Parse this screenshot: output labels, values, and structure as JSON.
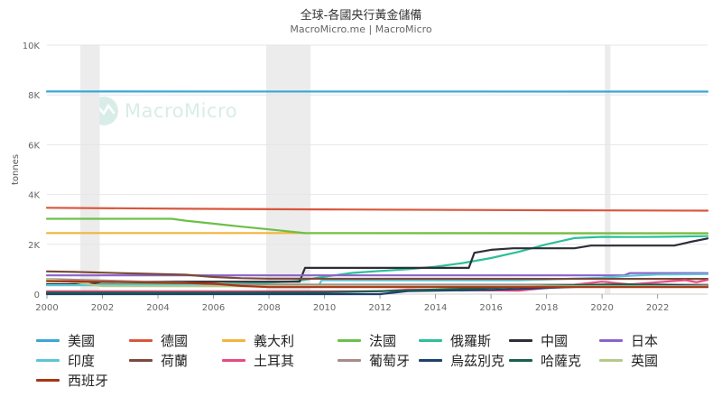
{
  "title": "全球-各國央行黃金儲備",
  "subtitle": "MacroMicro.me | MacroMicro",
  "watermark": "MacroMicro",
  "chart_data": {
    "type": "line",
    "title": "全球-各國央行黃金儲備",
    "ylabel": "tonnes",
    "xlim": [
      2000,
      2023.8
    ],
    "ylim": [
      0,
      10000
    ],
    "x_ticks": [
      "2000",
      "2002",
      "2004",
      "2006",
      "2008",
      "2010",
      "2012",
      "2014",
      "2016",
      "2018",
      "2020",
      "2022"
    ],
    "y_ticks": [
      "0",
      "2K",
      "4K",
      "6K",
      "8K",
      "10K"
    ],
    "recession_bands": [
      [
        2001.2,
        2001.9
      ],
      [
        2007.9,
        2009.5
      ],
      [
        2020.1,
        2020.3
      ]
    ],
    "series": [
      {
        "name": "美國",
        "color": "#3aa6d8",
        "points": [
          [
            2000,
            8137
          ],
          [
            2023.8,
            8133
          ]
        ]
      },
      {
        "name": "德國",
        "color": "#d9563c",
        "points": [
          [
            2000,
            3468
          ],
          [
            2005,
            3427
          ],
          [
            2010,
            3401
          ],
          [
            2015,
            3381
          ],
          [
            2020,
            3362
          ],
          [
            2023.8,
            3352
          ]
        ]
      },
      {
        "name": "義大利",
        "color": "#f4b43b",
        "points": [
          [
            2000,
            2452
          ],
          [
            2023.8,
            2452
          ]
        ]
      },
      {
        "name": "法國",
        "color": "#6cc04a",
        "points": [
          [
            2000,
            3025
          ],
          [
            2004.5,
            3025
          ],
          [
            2005,
            2950
          ],
          [
            2006,
            2830
          ],
          [
            2007,
            2710
          ],
          [
            2008,
            2600
          ],
          [
            2009.3,
            2450
          ],
          [
            2023.8,
            2437
          ]
        ]
      },
      {
        "name": "俄羅斯",
        "color": "#2dbf9b",
        "points": [
          [
            2000,
            400
          ],
          [
            2006,
            400
          ],
          [
            2007,
            420
          ],
          [
            2008,
            460
          ],
          [
            2009,
            520
          ],
          [
            2010,
            700
          ],
          [
            2011,
            850
          ],
          [
            2012,
            930
          ],
          [
            2013,
            1000
          ],
          [
            2014,
            1100
          ],
          [
            2015,
            1250
          ],
          [
            2016,
            1450
          ],
          [
            2017,
            1700
          ],
          [
            2018,
            2000
          ],
          [
            2019,
            2250
          ],
          [
            2020,
            2300
          ],
          [
            2021,
            2295
          ],
          [
            2022,
            2299
          ],
          [
            2023.8,
            2330
          ]
        ]
      },
      {
        "name": "中國",
        "color": "#2e2e38",
        "points": [
          [
            2000,
            395
          ],
          [
            2001.5,
            395
          ],
          [
            2002,
            500
          ],
          [
            2009.1,
            500
          ],
          [
            2009.3,
            1054
          ],
          [
            2015.2,
            1054
          ],
          [
            2015.4,
            1658
          ],
          [
            2016,
            1780
          ],
          [
            2016.8,
            1842
          ],
          [
            2019,
            1842
          ],
          [
            2019.6,
            1948
          ],
          [
            2022.6,
            1948
          ],
          [
            2023.2,
            2100
          ],
          [
            2023.8,
            2235
          ]
        ]
      },
      {
        "name": "日本",
        "color": "#8a63c9",
        "points": [
          [
            2000,
            754
          ],
          [
            2020.8,
            754
          ],
          [
            2021,
            846
          ],
          [
            2023.8,
            846
          ]
        ]
      },
      {
        "name": "印度",
        "color": "#5cc4d6",
        "points": [
          [
            2000,
            358
          ],
          [
            2009.8,
            358
          ],
          [
            2009.9,
            558
          ],
          [
            2017,
            558
          ],
          [
            2018,
            587
          ],
          [
            2019,
            626
          ],
          [
            2020,
            660
          ],
          [
            2021,
            740
          ],
          [
            2022,
            785
          ],
          [
            2023.8,
            803
          ]
        ]
      },
      {
        "name": "荷蘭",
        "color": "#7b4a3a",
        "points": [
          [
            2000,
            912
          ],
          [
            2001,
            893
          ],
          [
            2003,
            835
          ],
          [
            2005,
            780
          ],
          [
            2006,
            690
          ],
          [
            2007,
            640
          ],
          [
            2008,
            621
          ],
          [
            2023.8,
            612
          ]
        ]
      },
      {
        "name": "土耳其",
        "color": "#e84a7f",
        "points": [
          [
            2000,
            116
          ],
          [
            2012,
            116
          ],
          [
            2013,
            180
          ],
          [
            2015,
            160
          ],
          [
            2017,
            140
          ],
          [
            2018,
            250
          ],
          [
            2019,
            380
          ],
          [
            2020,
            500
          ],
          [
            2021,
            390
          ],
          [
            2022,
            480
          ],
          [
            2023,
            560
          ],
          [
            2023.4,
            480
          ],
          [
            2023.8,
            570
          ]
        ]
      },
      {
        "name": "葡萄牙",
        "color": "#a98a8a",
        "points": [
          [
            2000,
            607
          ],
          [
            2005,
            460
          ],
          [
            2006,
            382
          ],
          [
            2023.8,
            382
          ]
        ]
      },
      {
        "name": "烏茲別克",
        "color": "#1f3f6e",
        "points": [
          [
            2000,
            0
          ],
          [
            2012,
            0
          ],
          [
            2013,
            120
          ],
          [
            2016,
            170
          ],
          [
            2018,
            250
          ],
          [
            2020,
            330
          ],
          [
            2021,
            370
          ],
          [
            2022,
            380
          ],
          [
            2023,
            350
          ],
          [
            2023.8,
            330
          ]
        ]
      },
      {
        "name": "哈薩克",
        "color": "#1a5e4e",
        "points": [
          [
            2000,
            58
          ],
          [
            2004,
            60
          ],
          [
            2008,
            70
          ],
          [
            2010,
            75
          ],
          [
            2012,
            120
          ],
          [
            2014,
            180
          ],
          [
            2016,
            250
          ],
          [
            2018,
            330
          ],
          [
            2020,
            380
          ],
          [
            2021,
            390
          ],
          [
            2022,
            350
          ],
          [
            2023,
            300
          ],
          [
            2023.8,
            295
          ]
        ]
      },
      {
        "name": "英國",
        "color": "#b6c98a",
        "points": [
          [
            2000,
            600
          ],
          [
            2001,
            480
          ],
          [
            2002,
            320
          ],
          [
            2023.8,
            310
          ]
        ]
      },
      {
        "name": "西班牙",
        "color": "#a63514",
        "points": [
          [
            2000,
            523
          ],
          [
            2005,
            450
          ],
          [
            2006,
            420
          ],
          [
            2007,
            330
          ],
          [
            2008,
            282
          ],
          [
            2023.8,
            282
          ]
        ]
      }
    ]
  }
}
